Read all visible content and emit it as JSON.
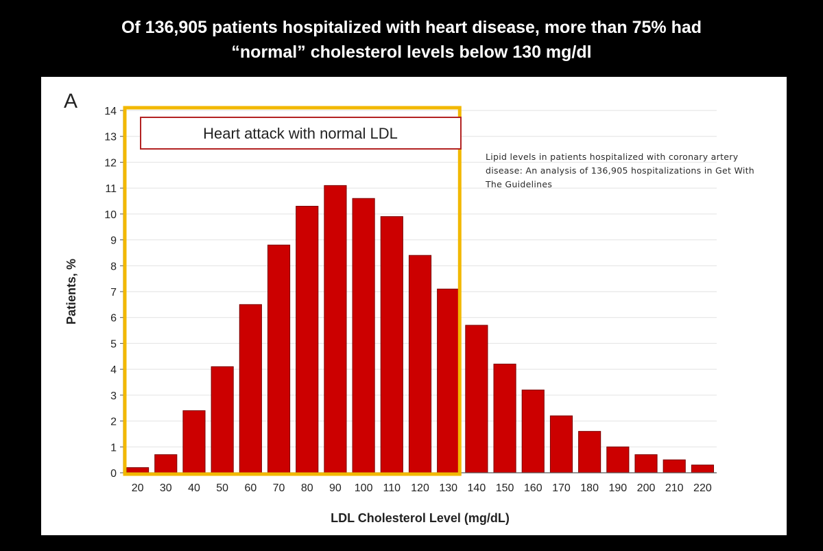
{
  "headline": {
    "line1": "Of 136,905 patients hospitalized with heart disease, more than 75% had",
    "line2": "“normal” cholesterol levels below 130 mg/dl"
  },
  "panel_label": "A",
  "highlight_label": "Heart attack with normal LDL",
  "citation": "Lipid levels in patients hospitalized with coronary artery disease: An analysis of 136,905 hospitalizations in Get With The Guidelines",
  "colors": {
    "bar": "#cc0000",
    "bar_edge": "#7a0000",
    "highlight": "#f2b800",
    "label_box_border": "#b22222"
  },
  "chart_data": {
    "type": "bar",
    "title": "",
    "xlabel": "LDL Cholesterol Level (mg/dL)",
    "ylabel": "Patients, %",
    "categories": [
      "20",
      "30",
      "40",
      "50",
      "60",
      "70",
      "80",
      "90",
      "100",
      "110",
      "120",
      "130",
      "140",
      "150",
      "160",
      "170",
      "180",
      "190",
      "200",
      "210",
      "220"
    ],
    "values": [
      0.2,
      0.7,
      2.4,
      4.1,
      6.5,
      8.8,
      10.3,
      11.1,
      10.6,
      9.9,
      8.4,
      7.1,
      5.7,
      4.2,
      3.2,
      2.2,
      1.6,
      1.0,
      0.7,
      0.5,
      0.3
    ],
    "ylim": [
      0,
      14
    ],
    "yticks": [
      0,
      1,
      2,
      3,
      4,
      5,
      6,
      7,
      8,
      9,
      10,
      11,
      12,
      13,
      14
    ],
    "grid": true,
    "highlight_range": [
      "20",
      "130"
    ]
  }
}
